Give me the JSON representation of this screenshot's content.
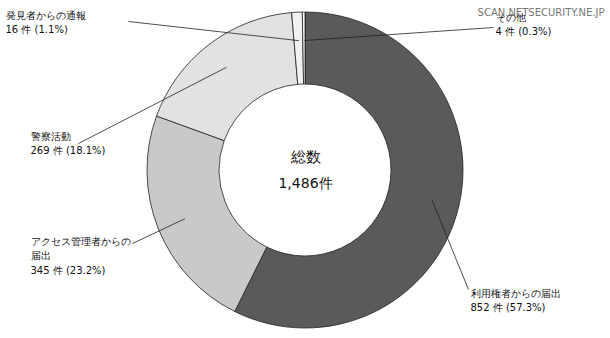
{
  "chart_data": {
    "type": "donut",
    "categories": [
      "利用権者からの届出",
      "アクセス管理者からの\n届出",
      "警察活動",
      "発見者からの通報",
      "その他"
    ],
    "values": [
      852,
      345,
      269,
      16,
      4
    ],
    "value_labels": [
      "852 件 (57.3%)",
      "345 件 (23.2%)",
      "269 件 (18.1%)",
      "16 件 (1.1%)",
      "4 件 (0.3%)"
    ],
    "colors": [
      "#5a5a5a",
      "#c9c9c9",
      "#e2e2e2",
      "#f2f2f2",
      "#ffffff"
    ],
    "data_labels": true,
    "center_text": [
      "総数",
      "1,486件"
    ],
    "watermark": "SCAN.NETSECURITY.NE.JP"
  }
}
